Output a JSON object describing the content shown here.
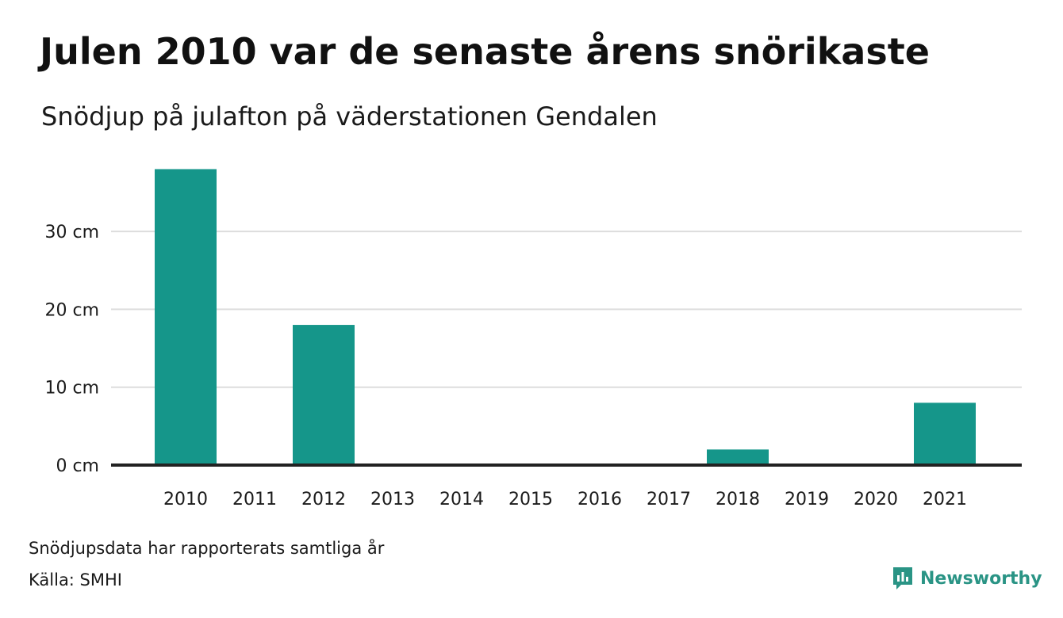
{
  "title": "Julen 2010 var de senaste årens snörikaste",
  "subtitle": "Snödjup på julafton på väderstationen Gendalen",
  "footer": {
    "note": "Snödjupsdata har rapporterats samtliga år",
    "source": "Källa: SMHI",
    "brand": "Newsworthy"
  },
  "colors": {
    "bar": "#15968a",
    "grid": "#dddddd",
    "baseline": "#222222",
    "brand": "#2a9485"
  },
  "icons": {
    "brand_logo": "newsworthy-logo-icon"
  },
  "chart_data": {
    "type": "bar",
    "categories": [
      "2010",
      "2011",
      "2012",
      "2013",
      "2014",
      "2015",
      "2016",
      "2017",
      "2018",
      "2019",
      "2020",
      "2021"
    ],
    "values": [
      38,
      0,
      18,
      0,
      0,
      0,
      0,
      0,
      2,
      0,
      0,
      8
    ],
    "yticks": [
      0,
      10,
      20,
      30
    ],
    "ytick_labels": [
      "0 cm",
      "10 cm",
      "20 cm",
      "30 cm"
    ],
    "ylim": [
      0,
      40
    ],
    "xlabel": "",
    "ylabel": "",
    "grid": true,
    "legend": "none"
  }
}
